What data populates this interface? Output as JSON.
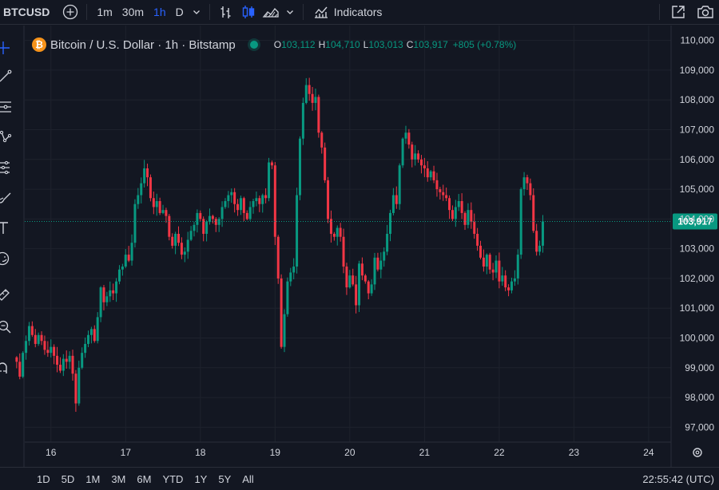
{
  "toolbar": {
    "symbol": "BTCUSD",
    "intervals": [
      {
        "label": "1m",
        "active": false
      },
      {
        "label": "30m",
        "active": false
      },
      {
        "label": "1h",
        "active": true
      },
      {
        "label": "D",
        "active": false
      }
    ],
    "indicators_label": "Indicators"
  },
  "legend": {
    "logo_glyph": "₿",
    "title": "Bitcoin / U.S. Dollar · 1h · Bitstamp",
    "open_label": "O",
    "open": "103,112",
    "high_label": "H",
    "high": "104,710",
    "low_label": "L",
    "low": "103,013",
    "close_label": "C",
    "close": "103,917",
    "change": "+805 (+0.78%)"
  },
  "colors": {
    "background": "#131722",
    "grid": "#1e222d",
    "up": "#089981",
    "down": "#f23645",
    "text": "#d1d4dc",
    "accent": "#2962ff"
  },
  "chart_data": {
    "type": "candlestick",
    "price_axis_ticks": [
      "110,000",
      "109,000",
      "108,000",
      "107,000",
      "106,000",
      "105,000",
      "104,000",
      "103,000",
      "102,000",
      "101,000",
      "100,000",
      "99,000",
      "98,000",
      "97,000"
    ],
    "price_axis_values": [
      110000,
      109000,
      108000,
      107000,
      106000,
      105000,
      104000,
      103000,
      102000,
      101000,
      100000,
      99000,
      98000,
      97000
    ],
    "time_axis_ticks": [
      "16",
      "17",
      "18",
      "19",
      "20",
      "21",
      "22",
      "23",
      "24"
    ],
    "time_axis_day_values": [
      16,
      17,
      18,
      19,
      20,
      21,
      22,
      23,
      24
    ],
    "ylim": [
      96500,
      110500
    ],
    "xlim": [
      15.65,
      24.3
    ],
    "current_price": 103917,
    "current_price_label": "103,917",
    "candle_interval_hours": 1,
    "candle_start": "15 13:00",
    "closes": [
      99200,
      98700,
      99500,
      99900,
      100400,
      100100,
      99800,
      100100,
      99900,
      99600,
      99500,
      99700,
      99400,
      99100,
      98900,
      99300,
      99200,
      99400,
      98800,
      97800,
      99000,
      99500,
      99800,
      100100,
      100300,
      99900,
      100700,
      101700,
      101200,
      101400,
      101600,
      101500,
      101900,
      102300,
      102400,
      102800,
      102600,
      103200,
      104500,
      104800,
      105200,
      105700,
      105400,
      104700,
      104400,
      104600,
      104200,
      104300,
      104100,
      103400,
      103100,
      103500,
      103200,
      102800,
      102900,
      103300,
      103600,
      103800,
      104200,
      104000,
      103500,
      103900,
      104100,
      104000,
      103800,
      104000,
      104400,
      104600,
      104800,
      104900,
      104500,
      104300,
      104700,
      104200,
      104000,
      104400,
      104600,
      104700,
      104500,
      104800,
      104700,
      105900,
      105800,
      103400,
      102000,
      99700,
      100800,
      101900,
      102200,
      102400,
      104800,
      106700,
      107900,
      108500,
      108200,
      107900,
      108100,
      106900,
      106400,
      105300,
      104000,
      103500,
      103400,
      103700,
      103400,
      102400,
      101700,
      102100,
      101800,
      101100,
      102500,
      102100,
      101900,
      101500,
      101800,
      102700,
      102300,
      102600,
      102900,
      103500,
      104200,
      104800,
      104500,
      105800,
      106700,
      106900,
      106500,
      106000,
      106200,
      106000,
      105800,
      105700,
      105400,
      105600,
      105300,
      105000,
      104900,
      104800,
      104700,
      104300,
      104000,
      104400,
      104600,
      104200,
      103800,
      104300,
      103900,
      103500,
      103100,
      102700,
      102400,
      102800,
      102300,
      102200,
      102600,
      101900,
      102100,
      101700,
      101600,
      101900,
      102000,
      102800,
      105000,
      105400,
      105200,
      104800,
      103600,
      102900,
      103100,
      103917
    ]
  },
  "bottombar": {
    "ranges": [
      "1D",
      "5D",
      "1M",
      "3M",
      "6M",
      "YTD",
      "1Y",
      "5Y",
      "All"
    ],
    "clock": "22:55:42 (UTC)"
  }
}
